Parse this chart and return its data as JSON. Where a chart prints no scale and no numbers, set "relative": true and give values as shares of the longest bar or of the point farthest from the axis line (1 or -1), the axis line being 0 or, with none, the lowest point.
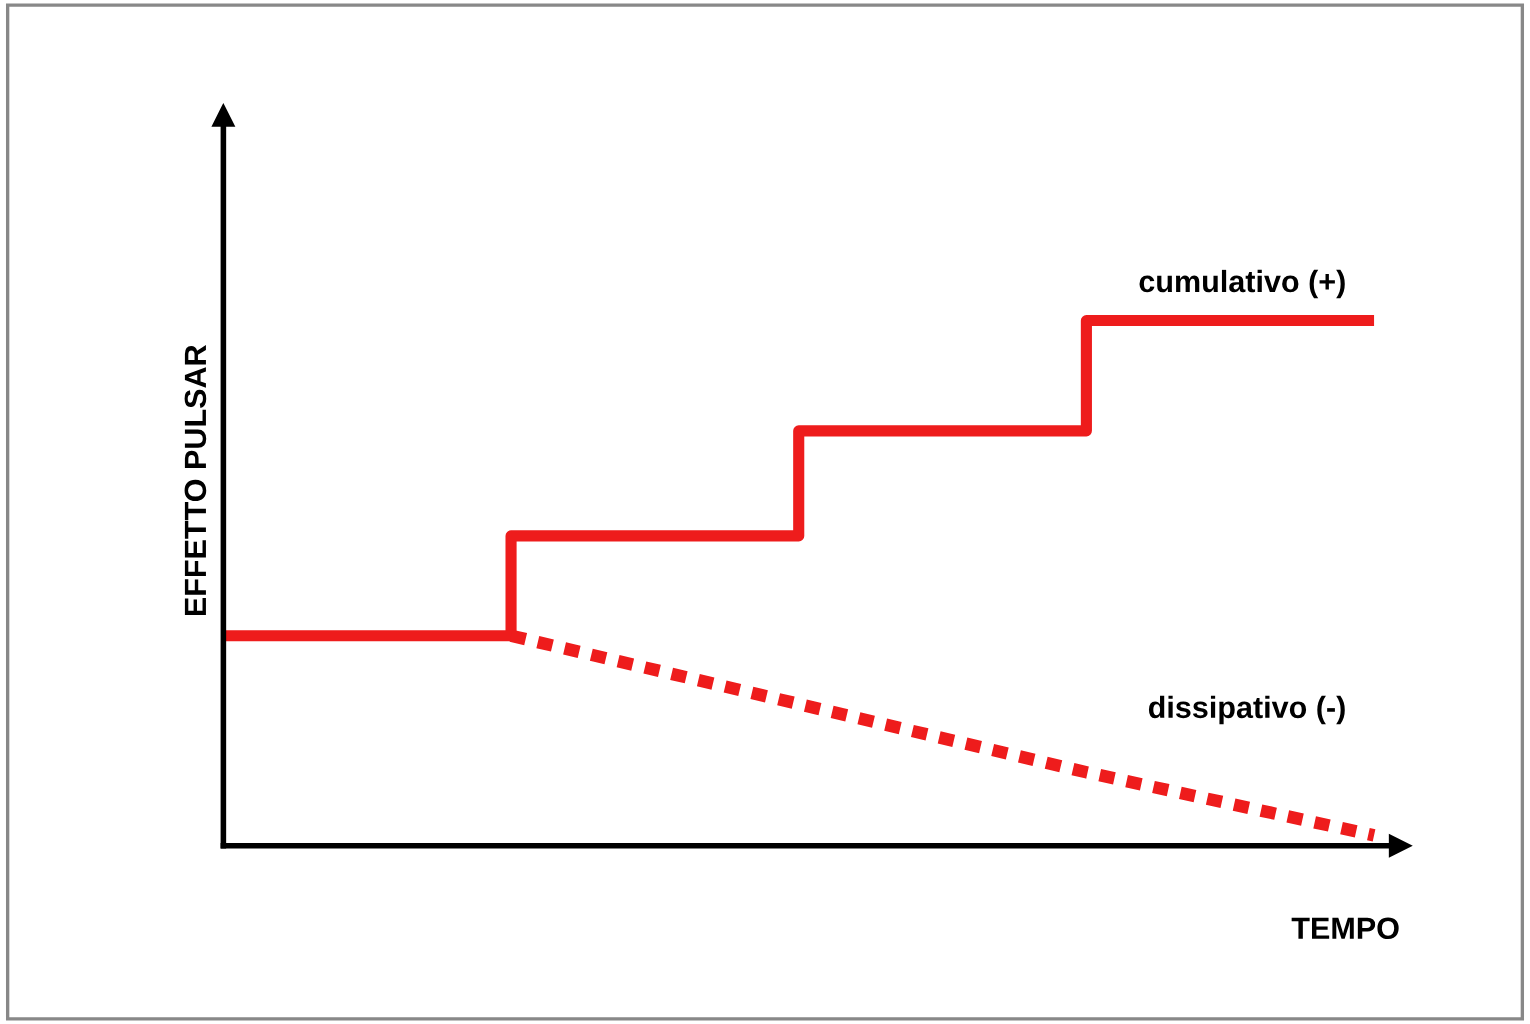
{
  "chart_data": {
    "type": "step",
    "relative": true,
    "xlabel": "TEMPO",
    "ylabel": "EFFETTO PULSAR",
    "legend": false,
    "grid": false,
    "categories": [
      null,
      null,
      null,
      null,
      null
    ],
    "series": [
      {
        "name": "cumulativo (+)",
        "color": "#ee1c1c",
        "line_style": "solid",
        "values": [
          0.4,
          0.59,
          0.79,
          1.0,
          1.0
        ]
      },
      {
        "name": "dissipativo (-)",
        "color": "#ee1c1c",
        "type": "line",
        "line_style": "dotted",
        "values": [
          null,
          0.4,
          0.27,
          0.14,
          0.02
        ]
      }
    ]
  }
}
